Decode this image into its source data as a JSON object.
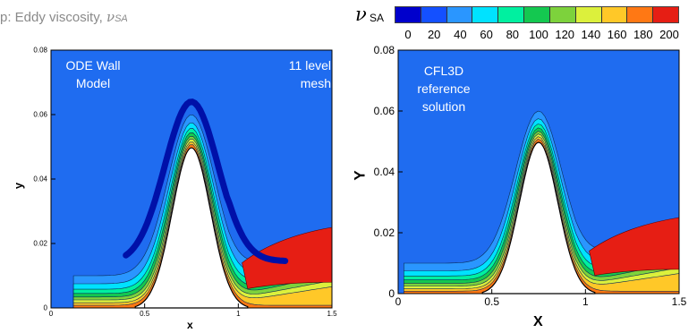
{
  "title": {
    "text": "p: Eddy viscosity, ",
    "nu": "ν",
    "sub": "SA"
  },
  "colorbar": {
    "symbol": "ν",
    "subscript": "SA",
    "ticks": [
      "0",
      "20",
      "40",
      "60",
      "80",
      "100",
      "120",
      "140",
      "160",
      "180",
      "200"
    ],
    "colors": [
      "#0000cc",
      "#1450ff",
      "#2a96ff",
      "#00e2ff",
      "#00f0a0",
      "#14c850",
      "#7dd23c",
      "#dcf03c",
      "#ffc828",
      "#ff7814",
      "#e61e14"
    ]
  },
  "chart_data": [
    {
      "type": "contour",
      "annotations": [
        "ODE Wall Model",
        "11 level mesh"
      ],
      "annotation_left": [
        "ODE Wall",
        "Model"
      ],
      "annotation_right": [
        "11 level",
        "mesh"
      ],
      "xlabel": "x",
      "ylabel": "y",
      "xlim": [
        0,
        1.5
      ],
      "ylim": [
        0,
        0.08
      ],
      "xticks": [
        "0",
        "0.5",
        "1",
        "1.5"
      ],
      "yticks": [
        "0",
        "0.02",
        "0.04",
        "0.06",
        "0.08"
      ],
      "bump_peak": {
        "x": 0.75,
        "y": 0.05
      },
      "field": "eddy viscosity nu_SA"
    },
    {
      "type": "contour",
      "annotations": [
        "CFL3D reference solution"
      ],
      "annotation_left": [
        "CFL3D",
        "reference",
        "solution"
      ],
      "annotation_right": [],
      "xlabel": "X",
      "ylabel": "Y",
      "xlim": [
        0,
        1.5
      ],
      "ylim": [
        0,
        0.08
      ],
      "xticks": [
        "0",
        "0.5",
        "1",
        "1.5"
      ],
      "yticks": [
        "0",
        "0.02",
        "0.04",
        "0.06",
        "0.08"
      ],
      "bump_peak": {
        "x": 0.75,
        "y": 0.05
      },
      "field": "eddy viscosity nu_SA"
    }
  ]
}
